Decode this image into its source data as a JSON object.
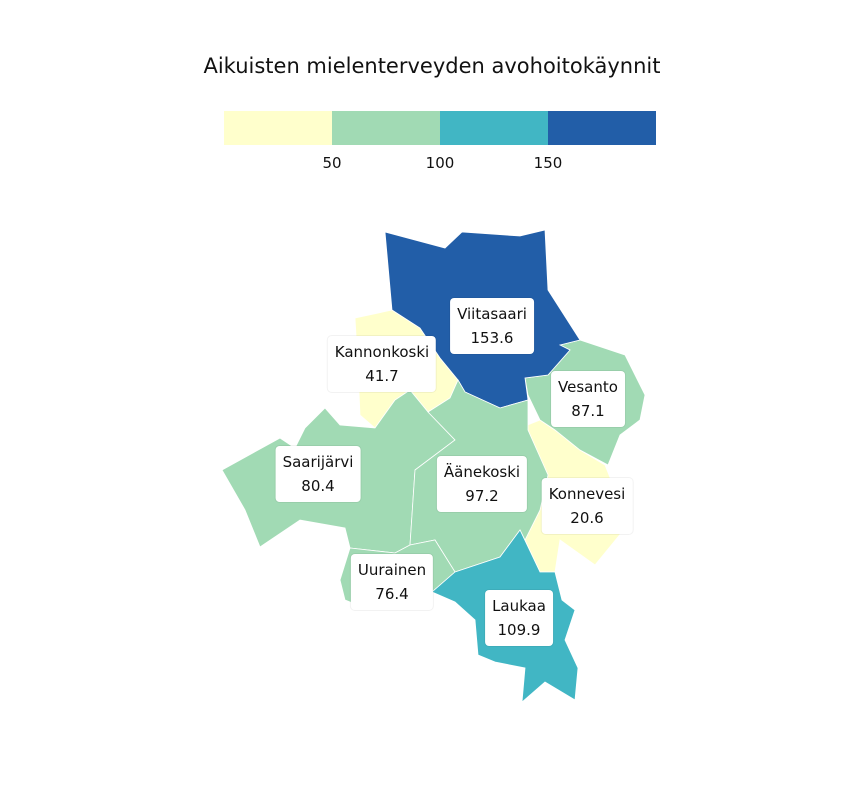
{
  "title": "Aikuisten mielenterveyden avohoitokäynnit",
  "legend": {
    "colors": [
      "#ffffcc",
      "#a1dab4",
      "#41b6c4",
      "#225ea8"
    ],
    "ticks": [
      "50",
      "100",
      "150"
    ]
  },
  "regions": [
    {
      "id": "viitasaari",
      "name": "Viitasaari",
      "value": "153.6",
      "color": "#225ea8"
    },
    {
      "id": "kannonkoski",
      "name": "Kannonkoski",
      "value": "41.7",
      "color": "#ffffcc"
    },
    {
      "id": "vesanto",
      "name": "Vesanto",
      "value": "87.1",
      "color": "#a1dab4"
    },
    {
      "id": "saarijarvi",
      "name": "Saarijärvi",
      "value": "80.4",
      "color": "#a1dab4"
    },
    {
      "id": "aanekoski",
      "name": "Äänekoski",
      "value": "97.2",
      "color": "#a1dab4"
    },
    {
      "id": "konnevesi",
      "name": "Konnevesi",
      "value": "20.6",
      "color": "#ffffcc"
    },
    {
      "id": "uurainen",
      "name": "Uurainen",
      "value": "76.4",
      "color": "#a1dab4"
    },
    {
      "id": "laukaa",
      "name": "Laukaa",
      "value": "109.9",
      "color": "#41b6c4"
    }
  ]
}
